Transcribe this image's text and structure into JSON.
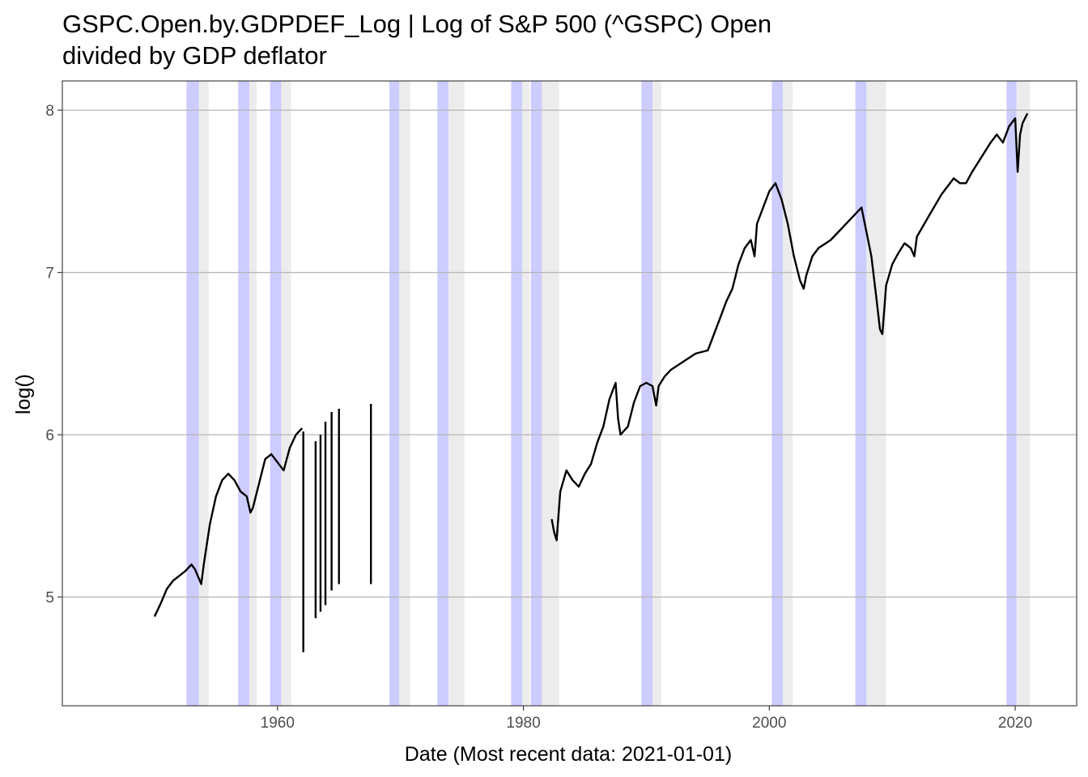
{
  "chart_data": {
    "type": "line",
    "title": "GSPC.Open.by.GDPDEF_Log | Log of S&P 500 (^GSPC) Open\ndivided by GDP deflator",
    "xlabel": "Date (Most recent data: 2021-01-01)",
    "ylabel": "log()",
    "xlim": [
      1942.5,
      2025.0
    ],
    "ylim": [
      4.33,
      8.18
    ],
    "x_ticks": [
      1960,
      1980,
      2000,
      2020
    ],
    "y_ticks": [
      5,
      6,
      7,
      8
    ],
    "grid": "horizontal major lines",
    "legend": "none",
    "colors": {
      "line": "#000000",
      "shade_blue": "#0000ff",
      "shade_gray": "#7f7f7f",
      "grid": "#b5b5b5",
      "axis": "#333333"
    },
    "shaded_periods_blue": [
      [
        1952.6,
        1953.6
      ],
      [
        1956.8,
        1957.7
      ],
      [
        1959.4,
        1960.3
      ],
      [
        1969.1,
        1969.9
      ],
      [
        1973.0,
        1973.9
      ],
      [
        1979.0,
        1979.9
      ],
      [
        1980.6,
        1981.5
      ],
      [
        1989.6,
        1990.5
      ],
      [
        2000.2,
        2001.1
      ],
      [
        2007.0,
        2007.9
      ],
      [
        2019.3,
        2020.1
      ]
    ],
    "shaded_periods_gray": [
      [
        1953.6,
        1954.4
      ],
      [
        1957.7,
        1958.3
      ],
      [
        1960.3,
        1961.1
      ],
      [
        1969.9,
        1970.8
      ],
      [
        1973.9,
        1975.2
      ],
      [
        1979.9,
        1980.5
      ],
      [
        1981.5,
        1982.9
      ],
      [
        1990.5,
        1991.2
      ],
      [
        2001.1,
        2001.9
      ],
      [
        2007.9,
        2009.5
      ],
      [
        2020.1,
        2021.2
      ]
    ],
    "series": [
      {
        "values_x": [
          1950.0,
          1950.5,
          1951.0,
          1951.5,
          1952.0,
          1952.5,
          1953.0,
          1953.3,
          1953.8,
          1954.0,
          1954.5,
          1955.0,
          1955.5,
          1956.0,
          1956.5,
          1957.0,
          1957.5,
          1957.8,
          1958.0,
          1958.5,
          1959.0,
          1959.5,
          1960.0,
          1960.5,
          1961.0,
          1961.5,
          1962.0
        ],
        "values_y": [
          4.88,
          4.96,
          5.05,
          5.1,
          5.13,
          5.16,
          5.2,
          5.17,
          5.08,
          5.2,
          5.45,
          5.62,
          5.72,
          5.76,
          5.72,
          5.65,
          5.62,
          5.52,
          5.55,
          5.7,
          5.85,
          5.88,
          5.83,
          5.78,
          5.92,
          6.0,
          6.04
        ]
      },
      {
        "vertical_segments": [
          [
            1962.1,
            4.66,
            6.02
          ],
          [
            1963.1,
            4.87,
            5.96
          ],
          [
            1963.5,
            4.91,
            6.0
          ],
          [
            1963.9,
            4.95,
            6.08
          ],
          [
            1964.4,
            5.04,
            6.14
          ],
          [
            1965.0,
            5.08,
            6.16
          ],
          [
            1967.6,
            5.08,
            6.19
          ]
        ]
      },
      {
        "values_x": [
          1982.3,
          1982.5,
          1982.7,
          1983.0,
          1983.5,
          1984.0,
          1984.5,
          1985.0,
          1985.5,
          1986.0,
          1986.5,
          1987.0,
          1987.5,
          1987.7,
          1987.9,
          1988.5,
          1989.0,
          1989.5,
          1990.0,
          1990.5,
          1990.8,
          1991.0,
          1991.5,
          1992.0,
          1993.0,
          1994.0,
          1995.0,
          1995.5,
          1996.0,
          1996.5,
          1997.0,
          1997.5,
          1998.0,
          1998.5,
          1998.8,
          1999.0,
          1999.5,
          2000.0,
          2000.5,
          2001.0,
          2001.5,
          2002.0,
          2002.5,
          2002.8,
          2003.0,
          2003.5,
          2004.0,
          2005.0,
          2006.0,
          2006.5,
          2007.0,
          2007.5,
          2007.9,
          2008.3,
          2008.7,
          2009.0,
          2009.2,
          2009.5,
          2010.0,
          2010.5,
          2011.0,
          2011.5,
          2011.8,
          2012.0,
          2013.0,
          2014.0,
          2015.0,
          2015.5,
          2016.0,
          2016.5,
          2017.0,
          2018.0,
          2018.5,
          2019.0,
          2019.5,
          2020.0,
          2020.2,
          2020.4,
          2020.6,
          2021.0
        ],
        "values_y": [
          5.48,
          5.4,
          5.35,
          5.65,
          5.78,
          5.72,
          5.68,
          5.76,
          5.82,
          5.95,
          6.05,
          6.22,
          6.32,
          6.1,
          6.0,
          6.05,
          6.2,
          6.3,
          6.32,
          6.3,
          6.18,
          6.3,
          6.36,
          6.4,
          6.45,
          6.5,
          6.52,
          6.62,
          6.72,
          6.82,
          6.9,
          7.05,
          7.15,
          7.2,
          7.1,
          7.3,
          7.4,
          7.5,
          7.55,
          7.45,
          7.3,
          7.1,
          6.95,
          6.9,
          6.98,
          7.1,
          7.15,
          7.2,
          7.28,
          7.32,
          7.36,
          7.4,
          7.25,
          7.1,
          6.85,
          6.65,
          6.62,
          6.92,
          7.05,
          7.12,
          7.18,
          7.15,
          7.1,
          7.22,
          7.35,
          7.48,
          7.58,
          7.55,
          7.55,
          7.62,
          7.68,
          7.8,
          7.85,
          7.8,
          7.9,
          7.95,
          7.62,
          7.85,
          7.92,
          7.98
        ]
      }
    ]
  }
}
